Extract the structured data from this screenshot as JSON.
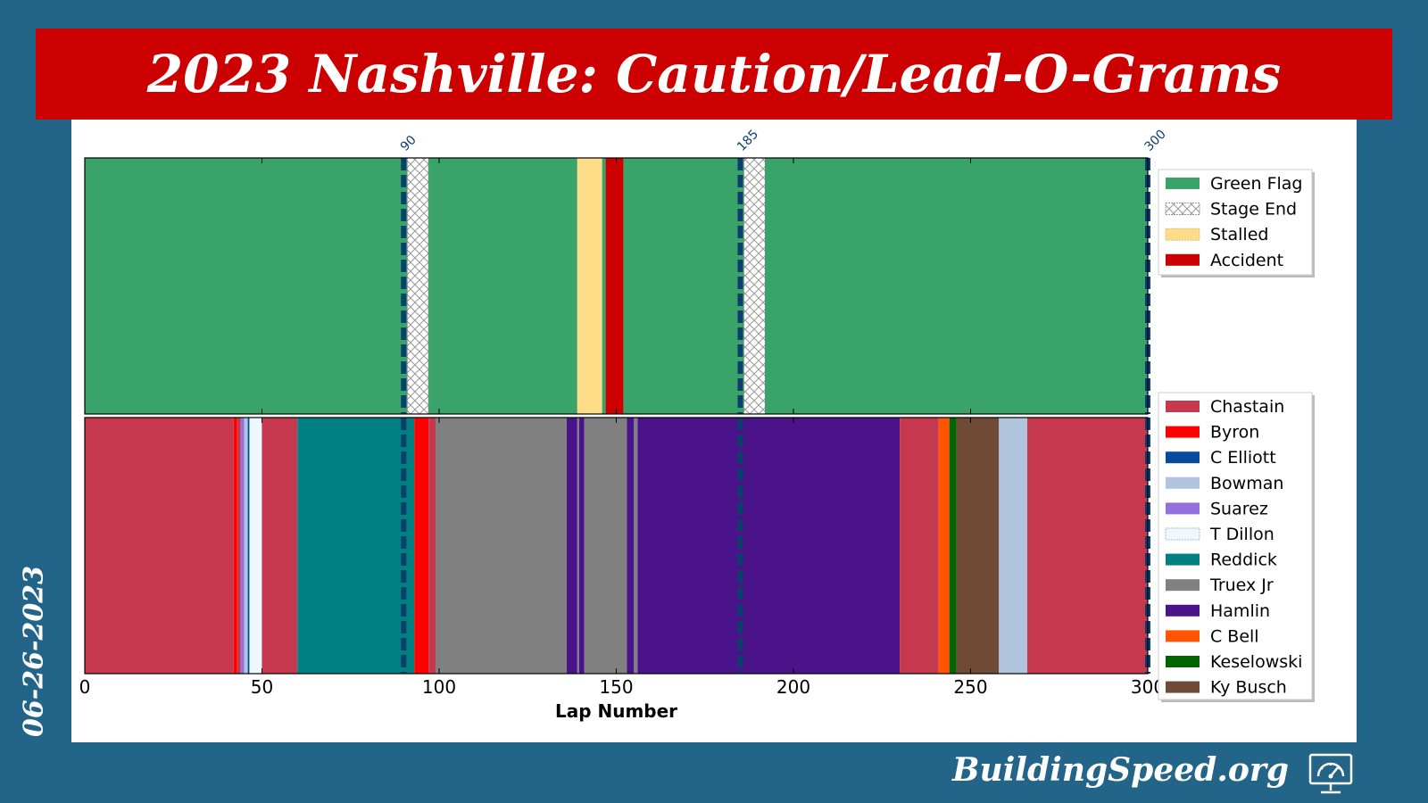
{
  "title": "2023 Nashville: Caution/Lead-O-Grams",
  "date": "06-26-2023",
  "site": "BuildingSpeed.org",
  "icon": "speedometer-monitor-icon",
  "chart_data": {
    "type": "bar",
    "xlabel": "Lap Number",
    "xlim": [
      0,
      300
    ],
    "xticks": [
      "0",
      "50",
      "100",
      "150",
      "200",
      "250",
      "300"
    ],
    "stage_markers": [
      {
        "lap": 90,
        "label": "90"
      },
      {
        "lap": 185,
        "label": "185"
      },
      {
        "lap": 300,
        "label": "300"
      }
    ],
    "caution_legend": [
      {
        "name": "Green Flag",
        "color": "#3aa36a",
        "pattern": "solid"
      },
      {
        "name": "Stage End",
        "color": "#ffffff",
        "pattern": "hatch"
      },
      {
        "name": "Stalled",
        "color": "#ffdd88",
        "pattern": "solid"
      },
      {
        "name": "Accident",
        "color": "#cc0000",
        "pattern": "solid"
      }
    ],
    "cautions": [
      {
        "type": "Green Flag",
        "start": 0,
        "end": 91
      },
      {
        "type": "Stage End",
        "start": 91,
        "end": 97
      },
      {
        "type": "Green Flag",
        "start": 97,
        "end": 139
      },
      {
        "type": "Stalled",
        "start": 139,
        "end": 146
      },
      {
        "type": "Green Flag",
        "start": 146,
        "end": 147
      },
      {
        "type": "Accident",
        "start": 147,
        "end": 152
      },
      {
        "type": "Green Flag",
        "start": 152,
        "end": 186
      },
      {
        "type": "Stage End",
        "start": 186,
        "end": 192
      },
      {
        "type": "Green Flag",
        "start": 192,
        "end": 300
      }
    ],
    "drivers": [
      {
        "name": "Chastain",
        "color": "#c5384e"
      },
      {
        "name": "Byron",
        "color": "#ff0000"
      },
      {
        "name": "C Elliott",
        "color": "#0a4a9c"
      },
      {
        "name": "Bowman",
        "color": "#b0c4de"
      },
      {
        "name": "Suarez",
        "color": "#9370db"
      },
      {
        "name": "T Dillon",
        "color": "#f0f8ff"
      },
      {
        "name": "Reddick",
        "color": "#008080"
      },
      {
        "name": "Truex Jr",
        "color": "#808080"
      },
      {
        "name": "Hamlin",
        "color": "#4b138a"
      },
      {
        "name": "C Bell",
        "color": "#ff5500"
      },
      {
        "name": "Keselowski",
        "color": "#006400"
      },
      {
        "name": "Ky Busch",
        "color": "#6f4a37"
      }
    ],
    "leaders": [
      {
        "driver": "Chastain",
        "start": 0,
        "end": 42
      },
      {
        "driver": "Byron",
        "start": 42,
        "end": 43
      },
      {
        "driver": "Chastain",
        "start": 43,
        "end": 44
      },
      {
        "driver": "Suarez",
        "start": 44,
        "end": 45
      },
      {
        "driver": "Bowman",
        "start": 45,
        "end": 46
      },
      {
        "driver": "C Elliott",
        "start": 46,
        "end": 46.5
      },
      {
        "driver": "T Dillon",
        "start": 46.5,
        "end": 50
      },
      {
        "driver": "Chastain",
        "start": 50,
        "end": 60
      },
      {
        "driver": "Reddick",
        "start": 60,
        "end": 93
      },
      {
        "driver": "Byron",
        "start": 93,
        "end": 97
      },
      {
        "driver": "Chastain",
        "start": 97,
        "end": 99
      },
      {
        "driver": "Truex Jr",
        "start": 99,
        "end": 136
      },
      {
        "driver": "Hamlin",
        "start": 136,
        "end": 139
      },
      {
        "driver": "Truex Jr",
        "start": 139,
        "end": 139.5
      },
      {
        "driver": "Hamlin",
        "start": 139.5,
        "end": 141
      },
      {
        "driver": "Truex Jr",
        "start": 141,
        "end": 153
      },
      {
        "driver": "Hamlin",
        "start": 153,
        "end": 155
      },
      {
        "driver": "Truex Jr",
        "start": 155,
        "end": 156
      },
      {
        "driver": "Hamlin",
        "start": 156,
        "end": 230
      },
      {
        "driver": "Chastain",
        "start": 230,
        "end": 241
      },
      {
        "driver": "C Bell",
        "start": 241,
        "end": 244
      },
      {
        "driver": "Keselowski",
        "start": 244,
        "end": 246
      },
      {
        "driver": "Ky Busch",
        "start": 246,
        "end": 258
      },
      {
        "driver": "Bowman",
        "start": 258,
        "end": 266
      },
      {
        "driver": "Chastain",
        "start": 266,
        "end": 300
      }
    ]
  }
}
